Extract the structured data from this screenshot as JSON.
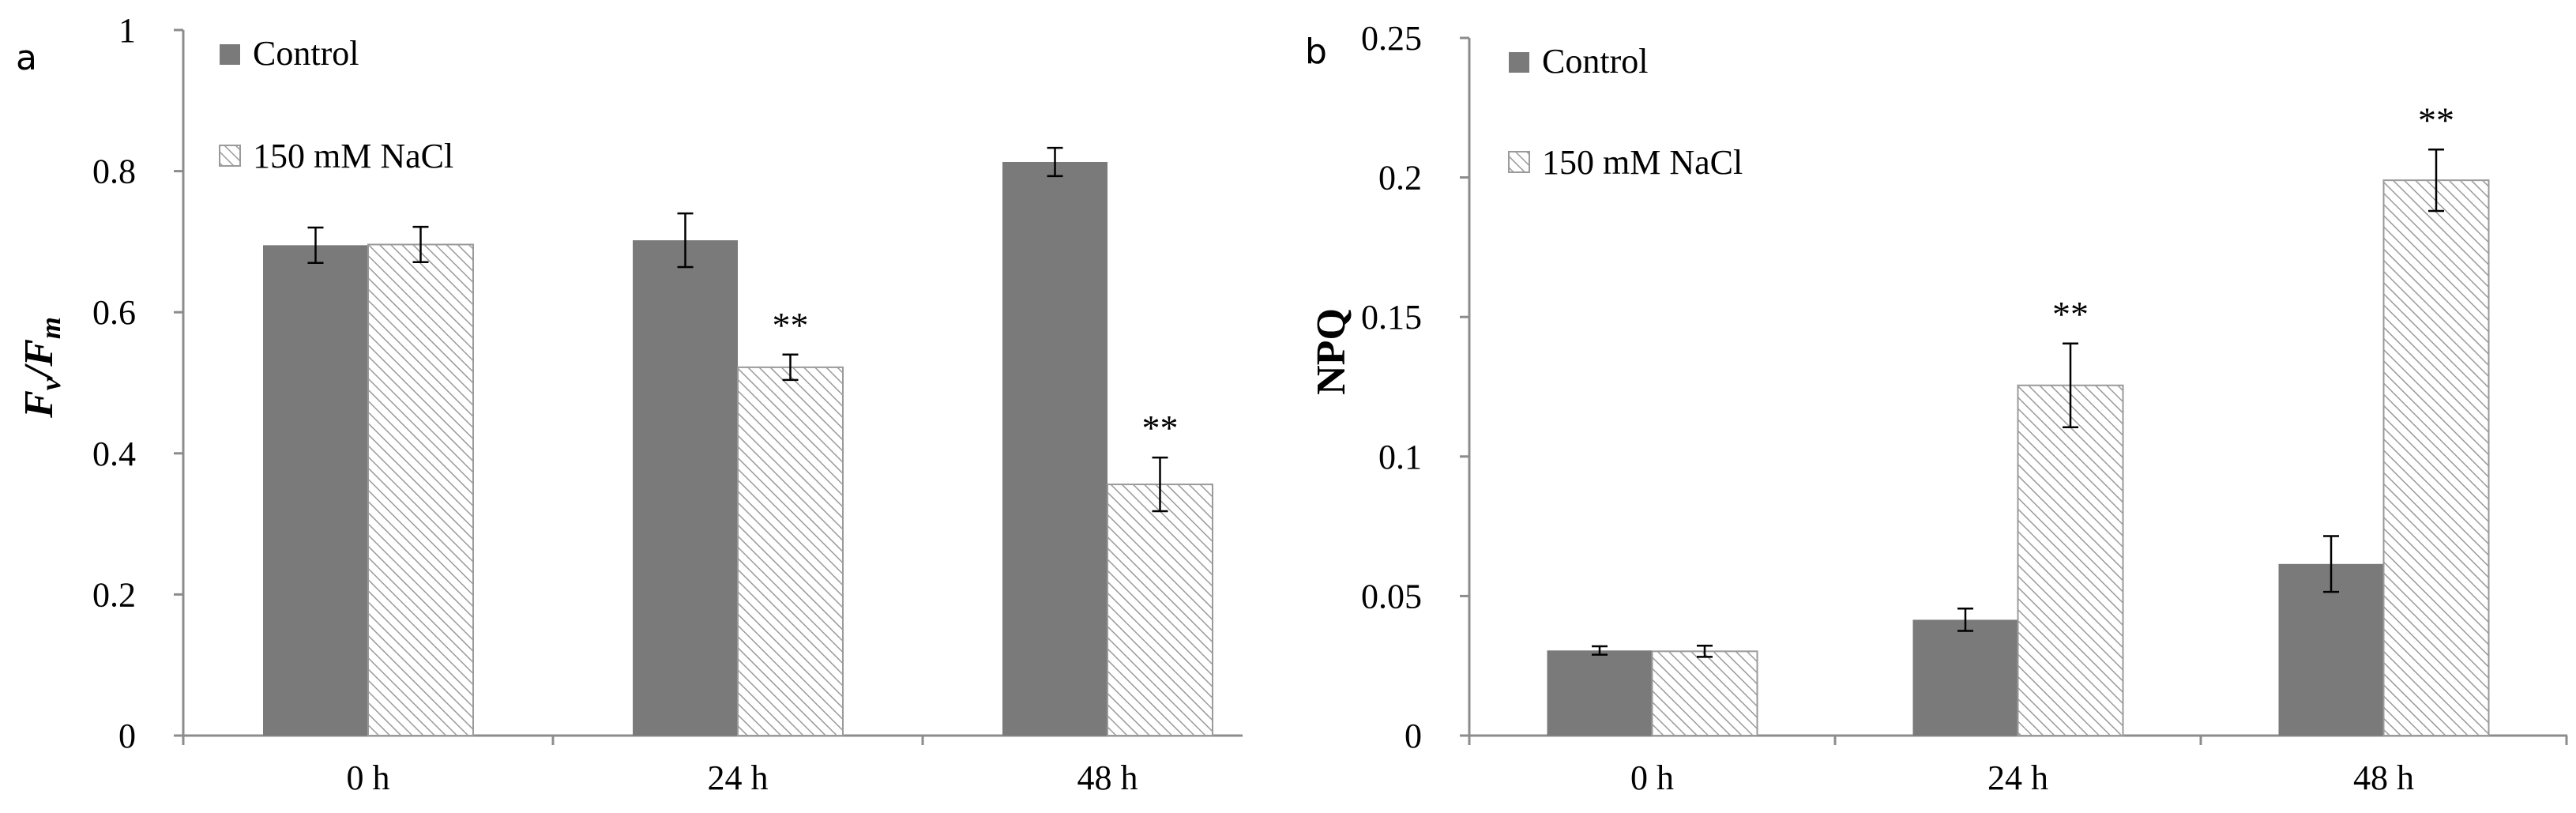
{
  "colors": {
    "control": "#7a7a7a",
    "nacl_fill": "#ffffff",
    "nacl_hatch": "#9a9a9a",
    "axis": "#8c8c8c",
    "text": "#000000",
    "error_bar": "#000000"
  },
  "chart_data": [
    {
      "panel_label": "a",
      "type": "bar",
      "ylabel_main": "F",
      "ylabel_sub1": "v",
      "ylabel_slash": "/",
      "ylabel_main2": "F",
      "ylabel_sub2": "m",
      "xlabel": "",
      "ylim": [
        0,
        1
      ],
      "yticks": [
        0,
        0.2,
        0.4,
        0.6,
        0.8,
        1
      ],
      "ytick_labels": [
        "0",
        "0.2",
        "0.4",
        "0.6",
        "0.8",
        "1"
      ],
      "categories": [
        "0 h",
        "24 h",
        "48 h"
      ],
      "series": [
        {
          "name": "Control",
          "values": [
            0.695,
            0.702,
            0.813
          ],
          "errors": [
            0.025,
            0.038,
            0.02
          ],
          "annotations": [
            "",
            "",
            ""
          ]
        },
        {
          "name": "150 mM NaCl",
          "values": [
            0.696,
            0.522,
            0.356
          ],
          "errors": [
            0.025,
            0.018,
            0.038
          ],
          "annotations": [
            "",
            "**",
            "**"
          ]
        }
      ],
      "legend": [
        "Control",
        "150 mM NaCl"
      ],
      "legend_position": "top-left"
    },
    {
      "panel_label": "b",
      "type": "bar",
      "ylabel": "NPQ",
      "xlabel": "",
      "ylim": [
        0,
        0.25
      ],
      "yticks": [
        0,
        0.05,
        0.1,
        0.15,
        0.2,
        0.25
      ],
      "ytick_labels": [
        "0",
        "0.05",
        "0.1",
        "0.15",
        "0.2",
        "0.25"
      ],
      "categories": [
        "0 h",
        "24 h",
        "48 h"
      ],
      "series": [
        {
          "name": "Control",
          "values": [
            0.0305,
            0.0415,
            0.0615
          ],
          "errors": [
            0.0015,
            0.004,
            0.01
          ],
          "annotations": [
            "",
            "",
            ""
          ]
        },
        {
          "name": "150 mM NaCl",
          "values": [
            0.0302,
            0.1255,
            0.199
          ],
          "errors": [
            0.002,
            0.015,
            0.011
          ],
          "annotations": [
            "",
            "**",
            "**"
          ]
        }
      ],
      "legend": [
        "Control",
        "150 mM NaCl"
      ],
      "legend_position": "top-left"
    }
  ]
}
